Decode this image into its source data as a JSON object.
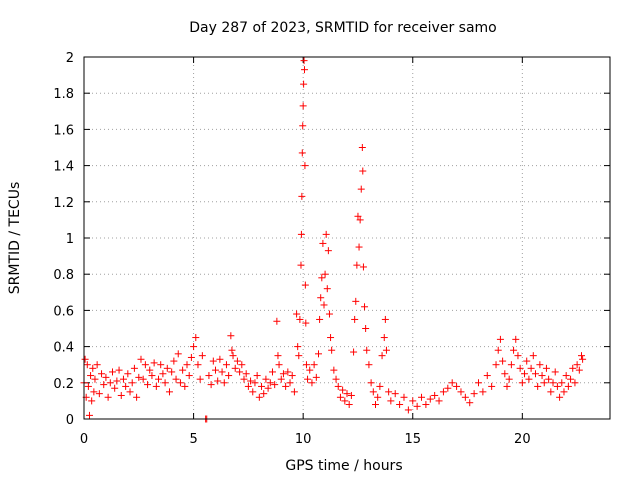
{
  "chart_data": {
    "type": "scatter",
    "title": "Day 287 of 2023, SRMTID for receiver samo",
    "xlabel": "GPS time / hours",
    "ylabel": "SRMTID / TECUs",
    "xlim": [
      0,
      24
    ],
    "ylim": [
      0,
      2
    ],
    "grid": true,
    "marker": "plus",
    "color": "#ff0000",
    "x_ticks": [
      0,
      5,
      10,
      15,
      20
    ],
    "x_tick_labels": [
      "0",
      "5",
      "10",
      "15",
      "20"
    ],
    "y_ticks": [
      0,
      0.2,
      0.4,
      0.6,
      0.8,
      1.0,
      1.2,
      1.4,
      1.6,
      1.8,
      2.0
    ],
    "y_tick_labels": [
      "0",
      "0.2",
      "0.4",
      "0.6",
      "0.8",
      "1",
      "1.2",
      "1.4",
      "1.6",
      "1.8",
      "2"
    ],
    "series": [
      {
        "name": "SRMTID",
        "points": [
          [
            0.0,
            0.2
          ],
          [
            0.05,
            0.33
          ],
          [
            0.1,
            0.12
          ],
          [
            0.15,
            0.3
          ],
          [
            0.2,
            0.18
          ],
          [
            0.25,
            0.02
          ],
          [
            0.3,
            0.24
          ],
          [
            0.35,
            0.1
          ],
          [
            0.4,
            0.28
          ],
          [
            0.45,
            0.15
          ],
          [
            0.5,
            0.22
          ],
          [
            0.6,
            0.3
          ],
          [
            0.7,
            0.14
          ],
          [
            0.8,
            0.25
          ],
          [
            0.9,
            0.19
          ],
          [
            1.0,
            0.23
          ],
          [
            1.1,
            0.12
          ],
          [
            1.2,
            0.2
          ],
          [
            1.3,
            0.26
          ],
          [
            1.4,
            0.17
          ],
          [
            1.5,
            0.21
          ],
          [
            1.6,
            0.27
          ],
          [
            1.7,
            0.13
          ],
          [
            1.8,
            0.22
          ],
          [
            1.9,
            0.18
          ],
          [
            2.0,
            0.25
          ],
          [
            2.1,
            0.15
          ],
          [
            2.2,
            0.2
          ],
          [
            2.3,
            0.28
          ],
          [
            2.4,
            0.12
          ],
          [
            2.5,
            0.23
          ],
          [
            2.6,
            0.33
          ],
          [
            2.7,
            0.22
          ],
          [
            2.8,
            0.3
          ],
          [
            2.9,
            0.19
          ],
          [
            3.0,
            0.27
          ],
          [
            3.1,
            0.24
          ],
          [
            3.2,
            0.31
          ],
          [
            3.3,
            0.18
          ],
          [
            3.4,
            0.22
          ],
          [
            3.5,
            0.3
          ],
          [
            3.6,
            0.25
          ],
          [
            3.7,
            0.2
          ],
          [
            3.8,
            0.28
          ],
          [
            3.9,
            0.15
          ],
          [
            4.0,
            0.26
          ],
          [
            4.1,
            0.32
          ],
          [
            4.2,
            0.22
          ],
          [
            4.3,
            0.36
          ],
          [
            4.4,
            0.2
          ],
          [
            4.5,
            0.27
          ],
          [
            4.6,
            0.18
          ],
          [
            4.7,
            0.3
          ],
          [
            4.8,
            0.24
          ],
          [
            4.9,
            0.34
          ],
          [
            5.0,
            0.4
          ],
          [
            5.1,
            0.45
          ],
          [
            5.2,
            0.3
          ],
          [
            5.3,
            0.22
          ],
          [
            5.4,
            0.35
          ],
          [
            5.55,
            0.0
          ],
          [
            5.6,
            0.0
          ],
          [
            5.7,
            0.24
          ],
          [
            5.8,
            0.19
          ],
          [
            5.9,
            0.32
          ],
          [
            6.0,
            0.27
          ],
          [
            6.1,
            0.21
          ],
          [
            6.2,
            0.33
          ],
          [
            6.3,
            0.26
          ],
          [
            6.4,
            0.2
          ],
          [
            6.5,
            0.3
          ],
          [
            6.6,
            0.24
          ],
          [
            6.7,
            0.46
          ],
          [
            6.75,
            0.38
          ],
          [
            6.8,
            0.35
          ],
          [
            6.9,
            0.28
          ],
          [
            7.0,
            0.32
          ],
          [
            7.1,
            0.26
          ],
          [
            7.2,
            0.3
          ],
          [
            7.3,
            0.22
          ],
          [
            7.4,
            0.25
          ],
          [
            7.5,
            0.18
          ],
          [
            7.6,
            0.21
          ],
          [
            7.7,
            0.15
          ],
          [
            7.8,
            0.2
          ],
          [
            7.9,
            0.24
          ],
          [
            8.0,
            0.12
          ],
          [
            8.1,
            0.18
          ],
          [
            8.2,
            0.14
          ],
          [
            8.3,
            0.22
          ],
          [
            8.4,
            0.17
          ],
          [
            8.5,
            0.2
          ],
          [
            8.6,
            0.26
          ],
          [
            8.7,
            0.19
          ],
          [
            8.8,
            0.54
          ],
          [
            8.85,
            0.35
          ],
          [
            8.9,
            0.3
          ],
          [
            9.0,
            0.22
          ],
          [
            9.1,
            0.25
          ],
          [
            9.2,
            0.18
          ],
          [
            9.3,
            0.26
          ],
          [
            9.4,
            0.2
          ],
          [
            9.5,
            0.24
          ],
          [
            9.6,
            0.15
          ],
          [
            9.7,
            0.58
          ],
          [
            9.75,
            0.4
          ],
          [
            9.8,
            0.35
          ],
          [
            9.85,
            0.55
          ],
          [
            9.9,
            0.85
          ],
          [
            9.92,
            1.02
          ],
          [
            9.94,
            1.23
          ],
          [
            9.96,
            1.47
          ],
          [
            9.98,
            1.62
          ],
          [
            10.0,
            1.73
          ],
          [
            10.02,
            1.85
          ],
          [
            10.04,
            1.98
          ],
          [
            10.06,
            1.93
          ],
          [
            10.08,
            1.4
          ],
          [
            10.1,
            0.74
          ],
          [
            10.12,
            0.53
          ],
          [
            10.15,
            0.3
          ],
          [
            10.2,
            0.22
          ],
          [
            10.3,
            0.27
          ],
          [
            10.4,
            0.2
          ],
          [
            10.5,
            0.3
          ],
          [
            10.6,
            0.23
          ],
          [
            10.7,
            0.36
          ],
          [
            10.75,
            0.55
          ],
          [
            10.8,
            0.67
          ],
          [
            10.85,
            0.78
          ],
          [
            10.9,
            0.97
          ],
          [
            10.95,
            0.63
          ],
          [
            11.0,
            0.8
          ],
          [
            11.05,
            1.02
          ],
          [
            11.1,
            0.72
          ],
          [
            11.15,
            0.93
          ],
          [
            11.2,
            0.58
          ],
          [
            11.25,
            0.45
          ],
          [
            11.3,
            0.38
          ],
          [
            11.4,
            0.27
          ],
          [
            11.5,
            0.22
          ],
          [
            11.6,
            0.18
          ],
          [
            11.7,
            0.12
          ],
          [
            11.8,
            0.16
          ],
          [
            11.9,
            0.1
          ],
          [
            12.0,
            0.14
          ],
          [
            12.1,
            0.08
          ],
          [
            12.2,
            0.13
          ],
          [
            12.3,
            0.37
          ],
          [
            12.35,
            0.55
          ],
          [
            12.4,
            0.65
          ],
          [
            12.45,
            0.85
          ],
          [
            12.5,
            1.12
          ],
          [
            12.55,
            0.95
          ],
          [
            12.6,
            1.1
          ],
          [
            12.65,
            1.27
          ],
          [
            12.7,
            1.5
          ],
          [
            12.72,
            1.37
          ],
          [
            12.75,
            0.84
          ],
          [
            12.8,
            0.62
          ],
          [
            12.85,
            0.5
          ],
          [
            12.9,
            0.38
          ],
          [
            13.0,
            0.3
          ],
          [
            13.1,
            0.2
          ],
          [
            13.2,
            0.15
          ],
          [
            13.3,
            0.08
          ],
          [
            13.4,
            0.12
          ],
          [
            13.5,
            0.18
          ],
          [
            13.6,
            0.35
          ],
          [
            13.7,
            0.45
          ],
          [
            13.75,
            0.55
          ],
          [
            13.8,
            0.38
          ],
          [
            13.9,
            0.15
          ],
          [
            14.0,
            0.1
          ],
          [
            14.2,
            0.14
          ],
          [
            14.4,
            0.08
          ],
          [
            14.6,
            0.12
          ],
          [
            14.8,
            0.05
          ],
          [
            15.0,
            0.1
          ],
          [
            15.2,
            0.07
          ],
          [
            15.4,
            0.12
          ],
          [
            15.6,
            0.08
          ],
          [
            15.8,
            0.11
          ],
          [
            16.0,
            0.13
          ],
          [
            16.2,
            0.1
          ],
          [
            16.4,
            0.15
          ],
          [
            16.6,
            0.17
          ],
          [
            16.8,
            0.2
          ],
          [
            17.0,
            0.18
          ],
          [
            17.2,
            0.15
          ],
          [
            17.4,
            0.12
          ],
          [
            17.6,
            0.09
          ],
          [
            17.8,
            0.14
          ],
          [
            18.0,
            0.2
          ],
          [
            18.2,
            0.15
          ],
          [
            18.4,
            0.24
          ],
          [
            18.6,
            0.18
          ],
          [
            18.8,
            0.3
          ],
          [
            18.9,
            0.38
          ],
          [
            19.0,
            0.44
          ],
          [
            19.1,
            0.32
          ],
          [
            19.2,
            0.25
          ],
          [
            19.3,
            0.18
          ],
          [
            19.4,
            0.22
          ],
          [
            19.5,
            0.3
          ],
          [
            19.6,
            0.38
          ],
          [
            19.7,
            0.44
          ],
          [
            19.8,
            0.35
          ],
          [
            19.9,
            0.28
          ],
          [
            20.0,
            0.2
          ],
          [
            20.1,
            0.25
          ],
          [
            20.2,
            0.32
          ],
          [
            20.3,
            0.22
          ],
          [
            20.4,
            0.28
          ],
          [
            20.5,
            0.35
          ],
          [
            20.6,
            0.25
          ],
          [
            20.7,
            0.18
          ],
          [
            20.8,
            0.3
          ],
          [
            20.9,
            0.24
          ],
          [
            21.0,
            0.2
          ],
          [
            21.1,
            0.28
          ],
          [
            21.2,
            0.22
          ],
          [
            21.3,
            0.15
          ],
          [
            21.4,
            0.2
          ],
          [
            21.5,
            0.26
          ],
          [
            21.6,
            0.18
          ],
          [
            21.7,
            0.12
          ],
          [
            21.8,
            0.2
          ],
          [
            21.9,
            0.15
          ],
          [
            22.0,
            0.24
          ],
          [
            22.1,
            0.18
          ],
          [
            22.2,
            0.22
          ],
          [
            22.3,
            0.28
          ],
          [
            22.4,
            0.2
          ],
          [
            22.5,
            0.3
          ],
          [
            22.6,
            0.27
          ],
          [
            22.7,
            0.35
          ],
          [
            22.75,
            0.33
          ]
        ]
      }
    ]
  }
}
